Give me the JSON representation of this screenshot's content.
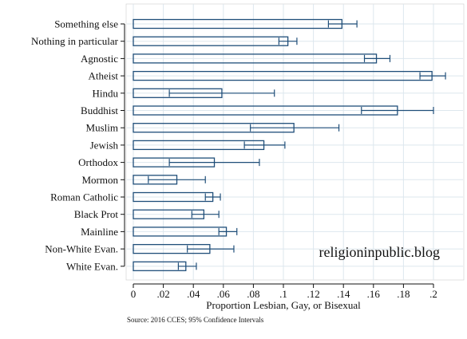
{
  "chart_data": {
    "type": "bar",
    "orientation": "horizontal",
    "categories": [
      "Something else",
      "Nothing in particular",
      "Agnostic",
      "Atheist",
      "Hindu",
      "Buddhist",
      "Muslim",
      "Jewish",
      "Orthodox",
      "Mormon",
      "Roman Catholic",
      "Black Prot",
      "Mainline",
      "Non-White Evan.",
      "White Evan."
    ],
    "values": [
      0.139,
      0.103,
      0.162,
      0.199,
      0.059,
      0.176,
      0.107,
      0.087,
      0.054,
      0.029,
      0.053,
      0.047,
      0.062,
      0.051,
      0.035
    ],
    "ci_low": [
      0.13,
      0.097,
      0.154,
      0.191,
      0.024,
      0.152,
      0.078,
      0.074,
      0.024,
      0.01,
      0.048,
      0.039,
      0.057,
      0.036,
      0.03
    ],
    "ci_high": [
      0.149,
      0.109,
      0.171,
      0.208,
      0.094,
      0.2,
      0.137,
      0.101,
      0.084,
      0.048,
      0.058,
      0.057,
      0.069,
      0.067,
      0.042
    ],
    "xlabel": "Proportion Lesbian, Gay, or Bisexual",
    "ylabel": "",
    "xlim": [
      0,
      0.2
    ],
    "xticks": [
      0,
      0.02,
      0.04,
      0.06,
      0.08,
      0.1,
      0.12,
      0.14,
      0.16,
      0.18,
      0.2
    ],
    "xtick_labels": [
      "0",
      ".02",
      ".04",
      ".06",
      ".08",
      ".1",
      ".12",
      ".14",
      ".16",
      ".18",
      ".2"
    ],
    "grid": true,
    "watermark": "religioninpublic.blog",
    "source_note": "Source: 2016 CCES; 95% Confidence Intervals",
    "colors": {
      "bar_outline": "#1f4e79",
      "error_bar": "#1f4e79",
      "grid": "#dde7ee",
      "axis": "#111111"
    }
  }
}
